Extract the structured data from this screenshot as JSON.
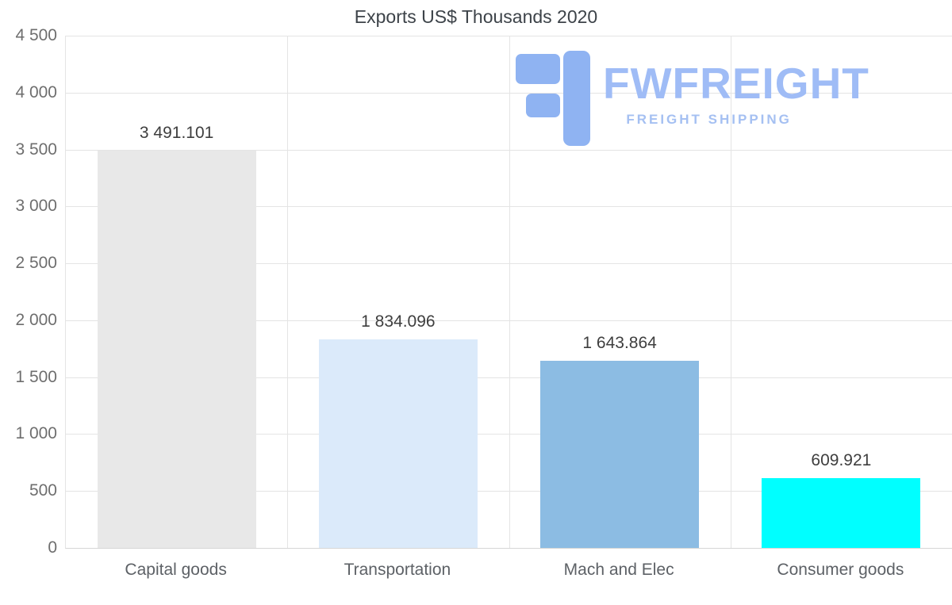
{
  "title": "Exports US$ Thousands 2020",
  "logo": {
    "name": "FWFREIGHT",
    "tagline": "FREIGHT SHIPPING",
    "icon_color": "#8fb3f2",
    "name_color": "#9fbcf6",
    "tagline_color": "#a5c0f2"
  },
  "chart_data": {
    "type": "bar",
    "title": "Exports US$ Thousands 2020",
    "categories": [
      "Capital goods",
      "Transportation",
      "Mach and Elec",
      "Consumer goods"
    ],
    "values": [
      3491.101,
      1834.096,
      1643.864,
      609.921
    ],
    "value_labels": [
      "3 491.101",
      "1 834.096",
      "1 643.864",
      "609.921"
    ],
    "bar_colors": [
      "#e8e8e8",
      "#dbeafa",
      "#8cbce3",
      "#00ffff"
    ],
    "xlabel": "",
    "ylabel": "",
    "ylim": [
      0,
      4500
    ],
    "ytick_step": 500,
    "ytick_labels": [
      "0",
      "500",
      "1 000",
      "1 500",
      "2 000",
      "2 500",
      "3 000",
      "3 500",
      "4 000",
      "4 500"
    ],
    "grid": true,
    "legend": false
  }
}
